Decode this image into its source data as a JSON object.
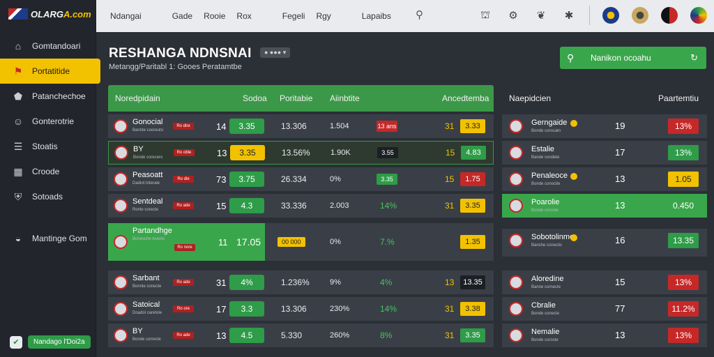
{
  "logo": {
    "text_a": "OLARG",
    "text_b": "A.com"
  },
  "sidebar": {
    "items": [
      {
        "label": "Gomtandoari",
        "icon": "home-icon"
      },
      {
        "label": "Portatitide",
        "icon": "flag-icon"
      },
      {
        "label": "Patanchechoe",
        "icon": "badge-icon"
      },
      {
        "label": "Gonterotrie",
        "icon": "user-icon"
      },
      {
        "label": "Stoatis",
        "icon": "list-icon"
      },
      {
        "label": "Croode",
        "icon": "grid-icon"
      },
      {
        "label": "Sotoads",
        "icon": "shield-icon"
      },
      {
        "label": "Mantinge Gom",
        "icon": "globe-icon"
      }
    ],
    "active_index": 1,
    "footer_label": "Nandago l'Doi2a"
  },
  "topbar": {
    "nav": [
      "Ndangai",
      "Gade",
      "Rooie",
      "Rox",
      "Fegeli",
      "Rgy",
      "Lapaibs"
    ],
    "icons": [
      "search-icon",
      "camera-icon",
      "gear-icon",
      "leaf-icon",
      "runner-icon"
    ],
    "team_balls": [
      "ball-blue",
      "ball-gold",
      "ball-red",
      "ball-green"
    ]
  },
  "page": {
    "title": "RESHANGA NDNSNAI",
    "title_tag": "● ●●● ▾",
    "subtitle": "Metangg/Paritabl 1: Gooes Peratamtbe",
    "search_label": "Nanikon ocoahu"
  },
  "main_table": {
    "headers": {
      "name": "Noredpidain",
      "c2": "Sodoa",
      "c3": "Poritabie",
      "c4": "Aiinbtite",
      "c6": "Ancedtemba"
    },
    "rows": [
      {
        "name": "Gonocial",
        "meta": "Bannte cooreuto",
        "badge": "Ro dire",
        "num": "14",
        "val": "3.35",
        "val_color": "g",
        "c3": "13.306",
        "c4": "1.504",
        "c5": "13 ans",
        "c5_color": "r",
        "c6n": "31",
        "c6": "3.33",
        "c6_color": "y"
      },
      {
        "name": "BY",
        "meta": "Bonde corecero",
        "badge": "Ro oble",
        "num": "13",
        "val": "3.35",
        "val_color": "y",
        "c3": "13.56%",
        "c4": "1.90K",
        "c5": "3.55",
        "c5_color": "dk",
        "c6n": "15",
        "c6": "4.83",
        "c6_color": "g",
        "hl": true
      },
      {
        "name": "Peasoatt",
        "meta": "Dadiot toterale",
        "badge": "Ro dle",
        "num": "73",
        "val": "3.75",
        "val_color": "g",
        "c3": "26.334",
        "c4": "0%",
        "c5": "3.35",
        "c5_color": "g",
        "c6n": "15",
        "c6": "1.75",
        "c6_color": "r"
      },
      {
        "name": "Sentdeal",
        "meta": "Ronle corecte",
        "badge": "Ro ade",
        "num": "15",
        "val": "4.3",
        "val_color": "g",
        "c3": "33.336",
        "c4": "2.003",
        "c5": "14%",
        "c5_color": "t",
        "c6n": "31",
        "c6": "3.35",
        "c6_color": "y"
      },
      {
        "name": "Partandhge",
        "meta": "Bonesche tovens",
        "badge": "Ro nore",
        "num": "11",
        "val": "17.05",
        "c3": "00 000",
        "c4": "0%",
        "c5": "7.%",
        "c5_color": "t",
        "c6n": "",
        "c6": "1.35",
        "c6_color": "y",
        "big": true
      },
      {
        "name": "Sarbant",
        "meta": "Bonnle conecte",
        "badge": "Ro ade",
        "num": "31",
        "val": "4%",
        "val_color": "g",
        "c3": "1.236%",
        "c4": "9%",
        "c5": "4%",
        "c5_color": "t",
        "c6n": "13",
        "c6": "13.35",
        "c6_color": "dk"
      },
      {
        "name": "Satoical",
        "meta": "Doadol caretole",
        "badge": "Ro ore",
        "num": "17",
        "val": "3.3",
        "val_color": "g",
        "c3": "13.306",
        "c4": "230%",
        "c5": "14%",
        "c5_color": "t",
        "c6n": "31",
        "c6": "3.38",
        "c6_color": "y"
      },
      {
        "name": "BY",
        "meta": "Bonde correcte",
        "badge": "Ro ade",
        "num": "13",
        "val": "4.5",
        "val_color": "g",
        "c3": "5.330",
        "c4": "260%",
        "c5": "8%",
        "c5_color": "t",
        "c6n": "31",
        "c6": "3.35",
        "c6_color": "g"
      }
    ]
  },
  "side_table": {
    "headers": {
      "name": "Naepidcien",
      "pct": "Paartemtiu"
    },
    "rows": [
      {
        "name": "Gerngaide",
        "meta": "Bonde corocatn",
        "num": "19",
        "pct": "13%",
        "pct_color": "r"
      },
      {
        "name": "Estalie",
        "meta": "Bande condete",
        "num": "17",
        "pct": "13%",
        "pct_color": "g"
      },
      {
        "name": "Penaleoce",
        "meta": "Bonde conocite",
        "num": "13",
        "pct": "1.05",
        "pct_color": "y"
      },
      {
        "name": "Poarolie",
        "meta": "Bonde coroste",
        "num": "13",
        "pct": "0.450",
        "pct_color": "n",
        "hl": true
      },
      {
        "name": "Sobotolinme",
        "meta": "Banshe conectis",
        "num": "16",
        "pct": "13.35",
        "pct_color": "g"
      },
      {
        "name": "Aloredine",
        "meta": "Banne cornecte",
        "num": "15",
        "pct": "13%",
        "pct_color": "r"
      },
      {
        "name": "Cbralie",
        "meta": "Bonde conecte",
        "num": "77",
        "pct": "11.2%",
        "pct_color": "r"
      },
      {
        "name": "Nemalie",
        "meta": "Bonde coroste",
        "num": "13",
        "pct": "13%",
        "pct_color": "r"
      }
    ]
  }
}
